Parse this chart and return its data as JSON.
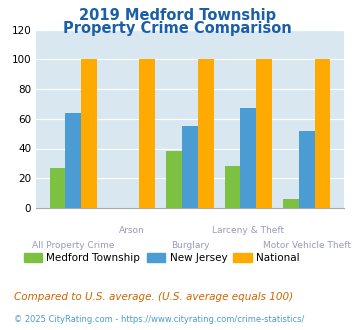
{
  "title_line1": "2019 Medford Township",
  "title_line2": "Property Crime Comparison",
  "categories": [
    "All Property Crime",
    "Arson",
    "Burglary",
    "Larceny & Theft",
    "Motor Vehicle Theft"
  ],
  "medford": [
    27,
    0,
    38,
    28,
    6
  ],
  "new_jersey": [
    64,
    0,
    55,
    67,
    52
  ],
  "national": [
    100,
    100,
    100,
    100,
    100
  ],
  "color_medford": "#7dc143",
  "color_nj": "#4b9cd3",
  "color_national": "#ffaa00",
  "ylim": [
    0,
    120
  ],
  "yticks": [
    0,
    20,
    40,
    60,
    80,
    100,
    120
  ],
  "plot_bg": "#d9e8f0",
  "title_color": "#1a5fa8",
  "xlabel_upper_color": "#9999bb",
  "xlabel_lower_color": "#9999bb",
  "legend_label_medford": "Medford Township",
  "legend_label_nj": "New Jersey",
  "legend_label_national": "National",
  "footnote1": "Compared to U.S. average. (U.S. average equals 100)",
  "footnote2": "© 2025 CityRating.com - https://www.cityrating.com/crime-statistics/",
  "footnote1_color": "#cc6600",
  "footnote2_color": "#4b9cd3"
}
